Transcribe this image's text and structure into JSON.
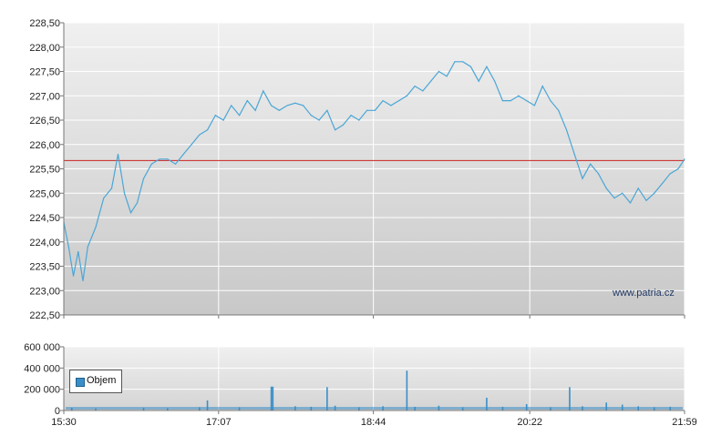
{
  "chart_data": [
    {
      "type": "line",
      "title": "",
      "xlabel": "",
      "ylabel": "",
      "ylim": [
        222.5,
        228.5
      ],
      "y_ticks": [
        "222,50",
        "223,00",
        "223,50",
        "224,00",
        "224,50",
        "225,00",
        "225,50",
        "226,00",
        "226,50",
        "227,00",
        "227,50",
        "228,00",
        "228,50"
      ],
      "x_ticks": [
        "15:30",
        "17:07",
        "18:44",
        "20:22",
        "21:59"
      ],
      "reference_line": 225.67,
      "grid": true,
      "series": [
        {
          "color": "#4aa6d6",
          "x": [
            "15:30",
            "15:33",
            "15:36",
            "15:39",
            "15:42",
            "15:45",
            "15:50",
            "15:55",
            "16:00",
            "16:04",
            "16:08",
            "16:12",
            "16:16",
            "16:20",
            "16:25",
            "16:30",
            "16:35",
            "16:40",
            "16:45",
            "16:50",
            "16:55",
            "17:00",
            "17:05",
            "17:10",
            "17:15",
            "17:20",
            "17:25",
            "17:30",
            "17:35",
            "17:40",
            "17:45",
            "17:50",
            "17:55",
            "18:00",
            "18:05",
            "18:10",
            "18:15",
            "18:20",
            "18:25",
            "18:30",
            "18:35",
            "18:40",
            "18:45",
            "18:50",
            "18:55",
            "19:00",
            "19:05",
            "19:10",
            "19:15",
            "19:20",
            "19:25",
            "19:30",
            "19:35",
            "19:40",
            "19:45",
            "19:50",
            "19:55",
            "20:00",
            "20:05",
            "20:10",
            "20:15",
            "20:20",
            "20:25",
            "20:30",
            "20:35",
            "20:40",
            "20:45",
            "20:50",
            "20:55",
            "21:00",
            "21:05",
            "21:10",
            "21:15",
            "21:20",
            "21:25",
            "21:30",
            "21:35",
            "21:40",
            "21:45",
            "21:50",
            "21:55",
            "21:59"
          ],
          "values": [
            224.4,
            223.9,
            223.3,
            223.8,
            223.2,
            223.9,
            224.3,
            224.9,
            225.1,
            225.8,
            225.0,
            224.6,
            224.8,
            225.3,
            225.6,
            225.7,
            225.7,
            225.6,
            225.8,
            226.0,
            226.2,
            226.3,
            226.6,
            226.5,
            226.8,
            226.6,
            226.9,
            226.7,
            227.1,
            226.8,
            226.7,
            226.8,
            226.85,
            226.8,
            226.6,
            226.5,
            226.7,
            226.3,
            226.4,
            226.6,
            226.5,
            226.7,
            226.7,
            226.9,
            226.8,
            226.9,
            227.0,
            227.2,
            227.1,
            227.3,
            227.5,
            227.4,
            227.7,
            227.7,
            227.6,
            227.3,
            227.6,
            227.3,
            226.9,
            226.9,
            227.0,
            226.9,
            226.8,
            227.2,
            226.9,
            226.7,
            226.3,
            225.8,
            225.3,
            225.6,
            225.4,
            225.1,
            224.9,
            225.0,
            224.8,
            225.1,
            224.85,
            225.0,
            225.2,
            225.4,
            225.5,
            225.7
          ]
        }
      ]
    },
    {
      "type": "bar",
      "title": "",
      "ylim": [
        0,
        600000
      ],
      "y_ticks": [
        "0",
        "200 000",
        "400 000",
        "600 000"
      ],
      "x_ticks": [
        "15:30",
        "17:07",
        "18:44",
        "20:22",
        "21:59"
      ],
      "series": [
        {
          "name": "Objem",
          "color": "#3a8ec7",
          "x": [
            "15:35",
            "15:50",
            "16:20",
            "16:35",
            "16:55",
            "17:00",
            "17:20",
            "17:40",
            "17:41",
            "17:55",
            "18:05",
            "18:15",
            "18:20",
            "18:35",
            "18:50",
            "19:05",
            "19:10",
            "19:25",
            "19:40",
            "19:55",
            "20:05",
            "20:20",
            "20:35",
            "20:47",
            "20:55",
            "21:10",
            "21:20",
            "21:30",
            "21:40",
            "21:50"
          ],
          "values": [
            25000,
            20000,
            25000,
            22000,
            30000,
            95000,
            30000,
            225000,
            225000,
            40000,
            35000,
            220000,
            45000,
            30000,
            40000,
            375000,
            35000,
            45000,
            30000,
            120000,
            35000,
            60000,
            30000,
            220000,
            40000,
            75000,
            55000,
            40000,
            30000,
            35000
          ]
        }
      ]
    }
  ],
  "legend": {
    "label": "Objem"
  },
  "watermark": "www.patria.cz"
}
